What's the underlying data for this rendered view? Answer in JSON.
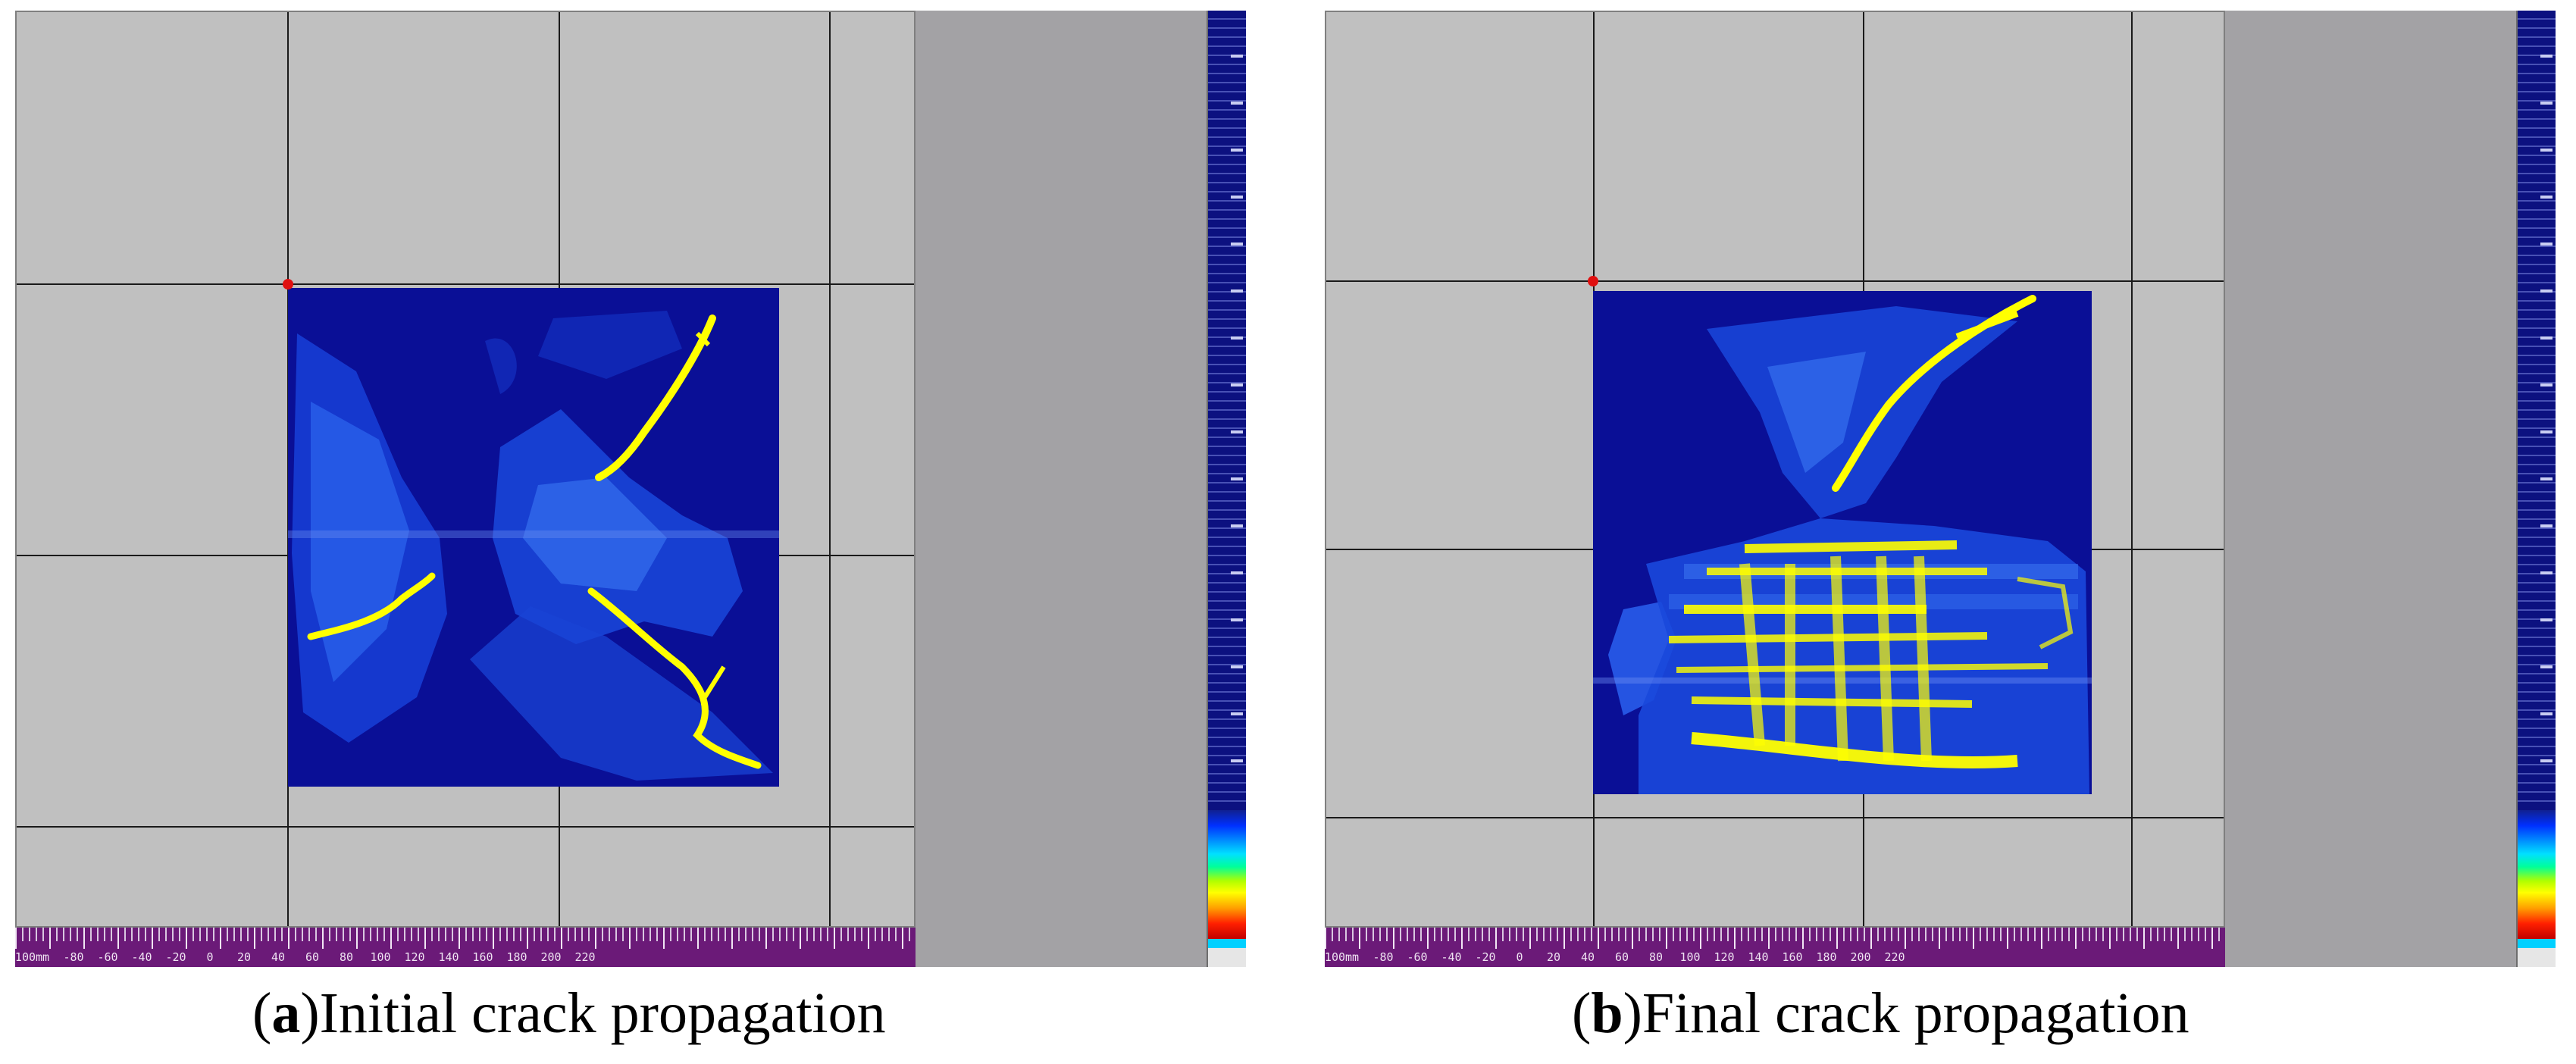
{
  "panels": [
    {
      "id": "a",
      "caption_letter": "a",
      "caption_text": "Initial crack propagation",
      "ruler_ticks": [
        "-100mm",
        "-80",
        "-60",
        "-40",
        "-20",
        "0",
        "20",
        "40",
        "60",
        "80",
        "100",
        "120",
        "140",
        "160",
        "180",
        "200",
        "220"
      ]
    },
    {
      "id": "b",
      "caption_letter": "b",
      "caption_text": "Final crack propagation",
      "ruler_ticks": [
        "-100mm",
        "-80",
        "-60",
        "-40",
        "-20",
        "0",
        "20",
        "40",
        "60",
        "80",
        "100",
        "120",
        "140",
        "160",
        "180",
        "200",
        "220"
      ]
    }
  ],
  "colors": {
    "background_grid": "#c0c0c0",
    "defect_base": "#0a0f96",
    "crack_highlight": "#ffff00",
    "ruler": "#6b1a78",
    "origin_marker": "#e01010"
  }
}
